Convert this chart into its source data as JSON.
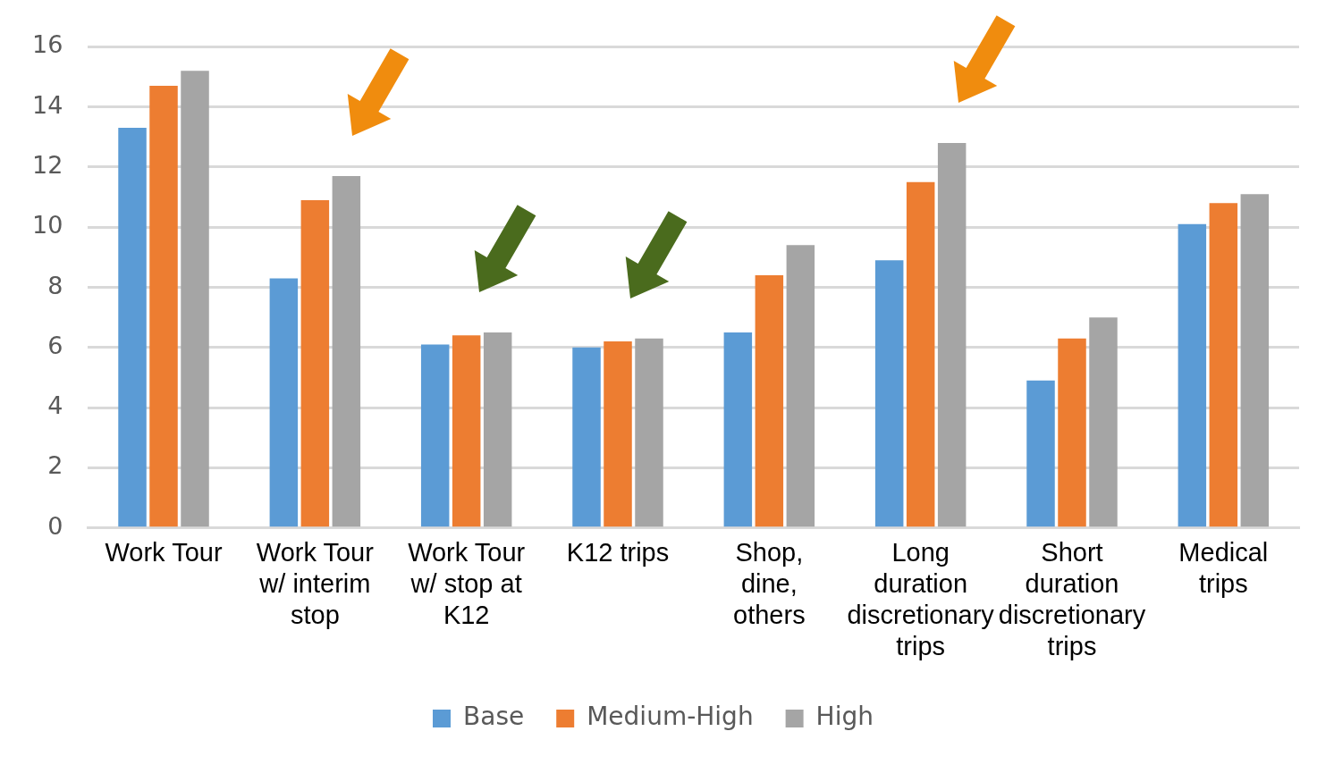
{
  "chart_data": {
    "type": "bar",
    "categories": [
      "Work Tour",
      "Work Tour w/ interim stop",
      "Work Tour w/ stop at K12",
      "K12 trips",
      "Shop, dine, others",
      "Long duration discretionary trips",
      "Short duration discretionary trips",
      "Medical trips"
    ],
    "series": [
      {
        "name": "Base",
        "color": "#5b9bd5",
        "values": [
          13.3,
          8.3,
          6.1,
          6.0,
          6.5,
          8.9,
          4.9,
          10.1
        ]
      },
      {
        "name": "Medium-High",
        "color": "#ed7d31",
        "values": [
          14.7,
          10.9,
          6.4,
          6.2,
          8.4,
          11.5,
          6.3,
          10.8
        ]
      },
      {
        "name": "High",
        "color": "#a5a5a5",
        "values": [
          15.2,
          11.7,
          6.5,
          6.3,
          9.4,
          12.8,
          7.0,
          11.1
        ]
      }
    ],
    "ylim": [
      0,
      16
    ],
    "yticks": [
      0,
      2,
      4,
      6,
      8,
      10,
      12,
      14,
      16
    ],
    "grid": "y",
    "legend": "bottom"
  }
}
